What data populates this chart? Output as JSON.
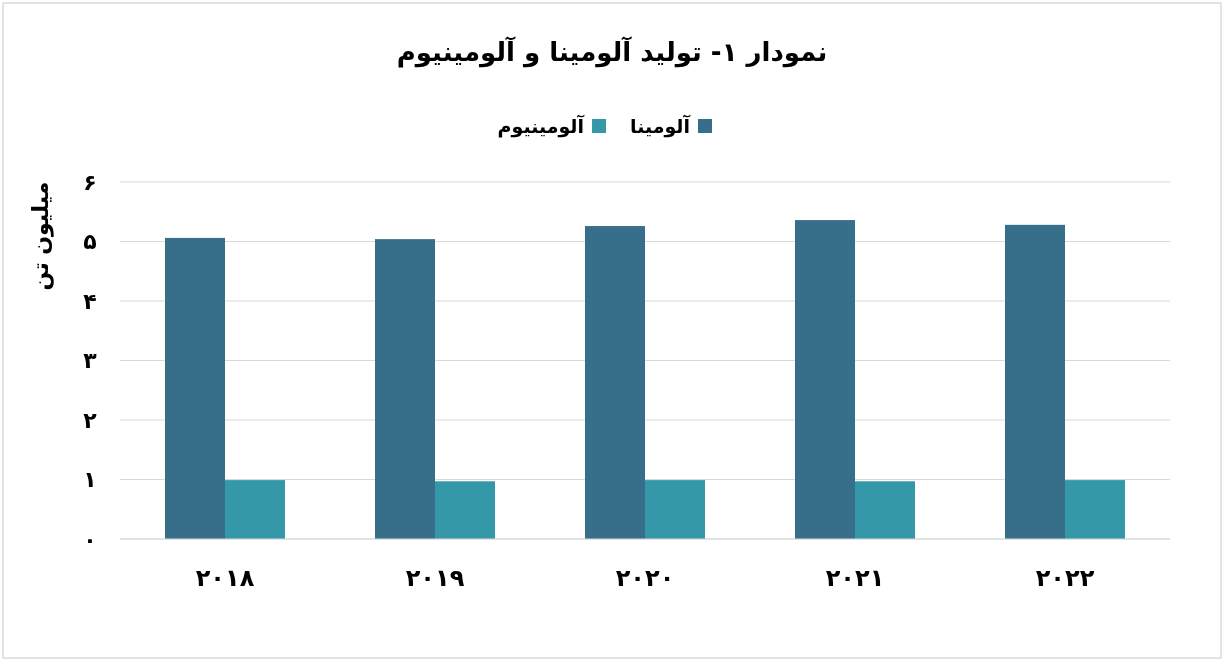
{
  "chart_data": {
    "type": "bar",
    "title": "نمودار ۱- تولید آلومینا و آلومینیوم",
    "ylabel": "میلیون تن",
    "categories": [
      "۲۰۱۸",
      "۲۰۱۹",
      "۲۰۲۰",
      "۲۰۲۱",
      "۲۰۲۲"
    ],
    "series": [
      {
        "name": "آلومینا",
        "color": "#376f8a",
        "values": [
          5.06,
          5.04,
          5.26,
          5.36,
          5.28
        ]
      },
      {
        "name": "آلومینیوم",
        "color": "#3598a8",
        "values": [
          0.99,
          0.97,
          0.99,
          0.97,
          0.99
        ]
      }
    ],
    "ylim": [
      0,
      6
    ],
    "yticks": [
      {
        "value": 0,
        "label": "۰"
      },
      {
        "value": 1,
        "label": "۱"
      },
      {
        "value": 2,
        "label": "۲"
      },
      {
        "value": 3,
        "label": "۳"
      },
      {
        "value": 4,
        "label": "۴"
      },
      {
        "value": 5,
        "label": "۵"
      },
      {
        "value": 6,
        "label": "۶"
      }
    ],
    "grid": "y",
    "legend": "top"
  }
}
